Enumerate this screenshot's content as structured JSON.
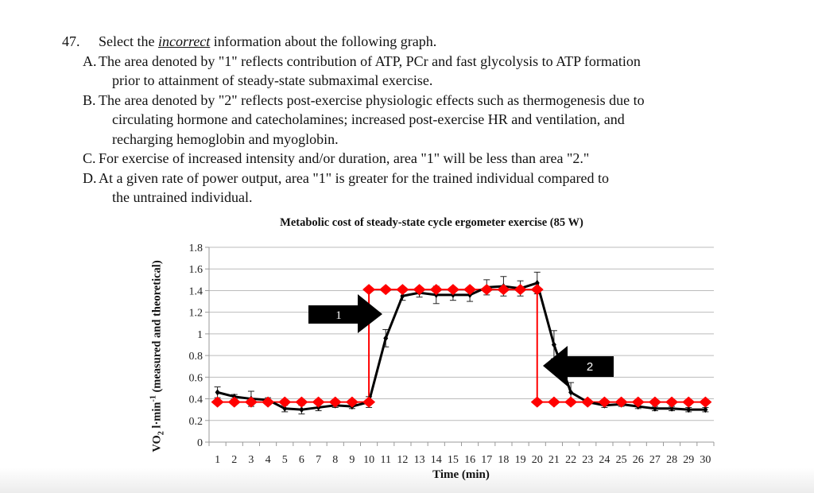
{
  "question": {
    "number": "47.",
    "stem_pre": "Select the ",
    "stem_em": "incorrect",
    "stem_post": " information about the following graph.",
    "options": [
      {
        "letter": "A.",
        "lines": [
          "The area denoted by \"1\" reflects contribution of ATP, PCr and fast glycolysis to ATP formation",
          "prior to attainment of steady-state submaximal exercise."
        ]
      },
      {
        "letter": "B.",
        "lines": [
          "The area denoted by \"2\" reflects post-exercise physiologic effects such as thermogenesis due to",
          "circulating hormone and catecholamines; increased post-exercise HR and ventilation, and",
          "recharging hemoglobin and myoglobin."
        ]
      },
      {
        "letter": "C.",
        "lines": [
          "For exercise of increased intensity and/or duration, area \"1\" will be less than area \"2.\""
        ]
      },
      {
        "letter": "D.",
        "lines": [
          "At a given rate of power output, area \"1\" is greater for the trained individual compared to",
          "the untrained individual."
        ]
      }
    ]
  },
  "chart_data": {
    "type": "line",
    "title": "Metabolic cost of steady-state cycle ergometer exercise (85 W)",
    "xlabel": "Time (min)",
    "ylabel_main": "VO",
    "ylabel_sub": "2",
    "ylabel_unit": " l·min",
    "ylabel_sup": "-1",
    "ylabel_rest": " (measured  and theoretical)",
    "categories": [
      "1",
      "2",
      "3",
      "4",
      "5",
      "6",
      "7",
      "8",
      "9",
      "10",
      "11",
      "12",
      "13",
      "14",
      "15",
      "16",
      "17",
      "18",
      "19",
      "20",
      "21",
      "22",
      "23",
      "24",
      "25",
      "26",
      "27",
      "28",
      "29",
      "30"
    ],
    "ylim": [
      0,
      1.8
    ],
    "yticks": [
      "0",
      "0.2",
      "0.4",
      "0.6",
      "0.8",
      "1",
      "1.2",
      "1.4",
      "1.6",
      "1.8"
    ],
    "grid": true,
    "series": [
      {
        "values": [
          0.46,
          0.42,
          0.4,
          0.39,
          0.31,
          0.3,
          0.32,
          0.34,
          0.33,
          0.37,
          0.96,
          1.35,
          1.38,
          1.36,
          1.36,
          1.36,
          1.43,
          1.44,
          1.42,
          1.47,
          0.9,
          0.46,
          0.37,
          0.34,
          0.35,
          0.33,
          0.31,
          0.31,
          0.3,
          0.3
        ],
        "errors": [
          0.05,
          0.02,
          0.07,
          0.02,
          0.03,
          0.04,
          0.03,
          0.02,
          0.02,
          0.05,
          0.08,
          0.04,
          0.04,
          0.08,
          0.05,
          0.06,
          0.07,
          0.09,
          0.07,
          0.1,
          0.13,
          0.09,
          0.02,
          0.02,
          0.02,
          0.02,
          0.02,
          0.02,
          0.02,
          0.02
        ],
        "color": "#000000",
        "marker": "small-diamond"
      },
      {
        "points": [
          [
            1,
            0.37
          ],
          [
            2,
            0.37
          ],
          [
            3,
            0.37
          ],
          [
            4,
            0.37
          ],
          [
            5,
            0.37
          ],
          [
            6,
            0.37
          ],
          [
            7,
            0.37
          ],
          [
            8,
            0.37
          ],
          [
            9,
            0.37
          ],
          [
            10,
            0.37
          ],
          [
            10,
            1.41
          ],
          [
            11,
            1.41
          ],
          [
            12,
            1.41
          ],
          [
            13,
            1.41
          ],
          [
            14,
            1.41
          ],
          [
            15,
            1.41
          ],
          [
            16,
            1.41
          ],
          [
            17,
            1.41
          ],
          [
            18,
            1.41
          ],
          [
            19,
            1.41
          ],
          [
            20,
            1.41
          ],
          [
            20,
            0.37
          ],
          [
            21,
            0.37
          ],
          [
            22,
            0.37
          ],
          [
            23,
            0.37
          ],
          [
            24,
            0.37
          ],
          [
            25,
            0.37
          ],
          [
            26,
            0.37
          ],
          [
            27,
            0.37
          ],
          [
            28,
            0.37
          ],
          [
            29,
            0.37
          ],
          [
            30,
            0.37
          ]
        ],
        "color": "#ff0000",
        "marker": "diamond"
      }
    ],
    "annotations": [
      {
        "label": "1",
        "shape": "arrow-right",
        "color": "#000000"
      },
      {
        "label": "2",
        "shape": "arrow-left",
        "color": "#000000"
      }
    ]
  }
}
